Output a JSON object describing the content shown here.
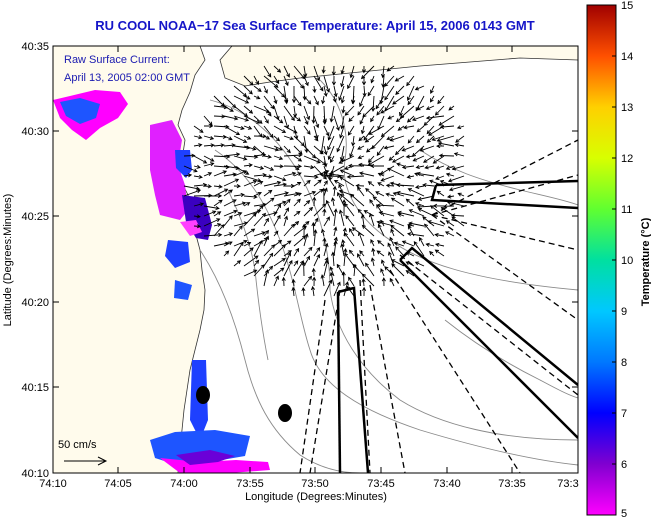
{
  "title": "RU COOL  NOAA−17  Sea Surface Temperature:  April 15, 2006 0143 GMT",
  "annotation": {
    "line1": "Raw Surface Current:",
    "line2": "April 13, 2005 02:00 GMT"
  },
  "axes": {
    "xlabel": "Longitude (Degrees:Minutes)",
    "ylabel": "Latitude (Degrees:Minutes)",
    "xticks": [
      "74:10",
      "74:05",
      "74:00",
      "73:55",
      "73:50",
      "73:45",
      "73:40",
      "73:35",
      "73:3"
    ],
    "yticks": [
      "40:35",
      "40:30",
      "40:25",
      "40:20",
      "40:15",
      "40:10"
    ]
  },
  "scale_arrow": {
    "label": "50 cm/s"
  },
  "colorbar": {
    "label": "Temperature (°C)",
    "ticks": [
      "15",
      "14",
      "13",
      "12",
      "11",
      "10",
      "9",
      "8",
      "7",
      "6",
      "5"
    ],
    "range": [
      5,
      15
    ]
  },
  "colors": {
    "title": "#1515c8",
    "land": "#fffbec",
    "water": "#ffffff"
  }
}
